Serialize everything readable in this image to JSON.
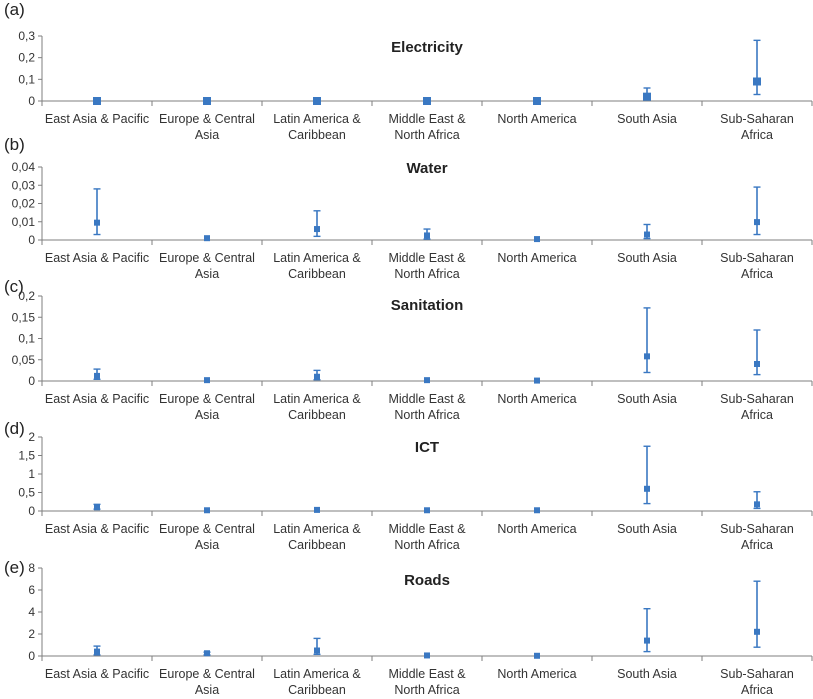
{
  "categories": [
    [
      "East Asia & Pacific"
    ],
    [
      "Europe & Central",
      "Asia"
    ],
    [
      "Latin America &",
      "Caribbean"
    ],
    [
      "Middle East &",
      "North Africa"
    ],
    [
      "North America"
    ],
    [
      "South Asia"
    ],
    [
      "Sub-Saharan",
      "Africa"
    ]
  ],
  "colors": {
    "series": "#3a78c2",
    "axis": "#7f7f7f"
  },
  "chart_data": [
    {
      "type": "scatter",
      "panel": "(a)",
      "title": "Electricity",
      "ylim": [
        0,
        0.3
      ],
      "yticks": [
        0,
        0.1,
        0.2,
        0.3
      ],
      "ytick_labels": [
        "0",
        "0,1",
        "0,2",
        "0,3"
      ],
      "values": [
        0,
        0,
        0,
        0,
        0,
        0.02,
        0.09
      ],
      "low": [
        0,
        0,
        0,
        0,
        0,
        0.01,
        0.03
      ],
      "high": [
        0,
        0,
        0,
        0,
        0,
        0.06,
        0.28
      ]
    },
    {
      "type": "scatter",
      "panel": "(b)",
      "title": "Water",
      "ylim": [
        0,
        0.04
      ],
      "yticks": [
        0,
        0.01,
        0.02,
        0.03,
        0.04
      ],
      "ytick_labels": [
        "0",
        "0,01",
        "0,02",
        "0,03",
        "0,04"
      ],
      "values": [
        0.0095,
        0.001,
        0.006,
        0.0025,
        0.0005,
        0.003,
        0.0098
      ],
      "low": [
        0.003,
        0.0005,
        0.002,
        0.0005,
        0.0002,
        0.0008,
        0.003
      ],
      "high": [
        0.028,
        0.001,
        0.016,
        0.006,
        0.0005,
        0.0085,
        0.029
      ]
    },
    {
      "type": "scatter",
      "panel": "(c)",
      "title": "Sanitation",
      "ylim": [
        0,
        0.2
      ],
      "yticks": [
        0,
        0.05,
        0.1,
        0.15,
        0.2
      ],
      "ytick_labels": [
        "0",
        "0,05",
        "0,1",
        "0,15",
        "0,2"
      ],
      "values": [
        0.012,
        0.002,
        0.01,
        0.002,
        0.001,
        0.058,
        0.04
      ],
      "low": [
        0.004,
        0.001,
        0.003,
        0.001,
        0.0005,
        0.02,
        0.015
      ],
      "high": [
        0.028,
        0.003,
        0.025,
        0.003,
        0.001,
        0.172,
        0.12
      ]
    },
    {
      "type": "scatter",
      "panel": "(d)",
      "title": "ICT",
      "ylim": [
        0,
        2
      ],
      "yticks": [
        0,
        0.5,
        1,
        1.5,
        2
      ],
      "ytick_labels": [
        "0",
        "0,5",
        "1",
        "1,5",
        "2"
      ],
      "values": [
        0.1,
        0.02,
        0.03,
        0.02,
        0.02,
        0.6,
        0.18
      ],
      "low": [
        0.05,
        0.01,
        0.01,
        0.01,
        0.01,
        0.2,
        0.07
      ],
      "high": [
        0.18,
        0.04,
        0.05,
        0.03,
        0.03,
        1.75,
        0.52
      ]
    },
    {
      "type": "scatter",
      "panel": "(e)",
      "title": "Roads",
      "ylim": [
        0,
        8
      ],
      "yticks": [
        0,
        2,
        4,
        6,
        8
      ],
      "ytick_labels": [
        "0",
        "2",
        "4",
        "6",
        "8"
      ],
      "values": [
        0.4,
        0.25,
        0.5,
        0.05,
        0.02,
        1.4,
        2.2
      ],
      "low": [
        0.1,
        0.1,
        0.15,
        0.02,
        0.01,
        0.4,
        0.8
      ],
      "high": [
        0.9,
        0.35,
        1.6,
        0.1,
        0.05,
        4.3,
        6.8
      ]
    }
  ]
}
